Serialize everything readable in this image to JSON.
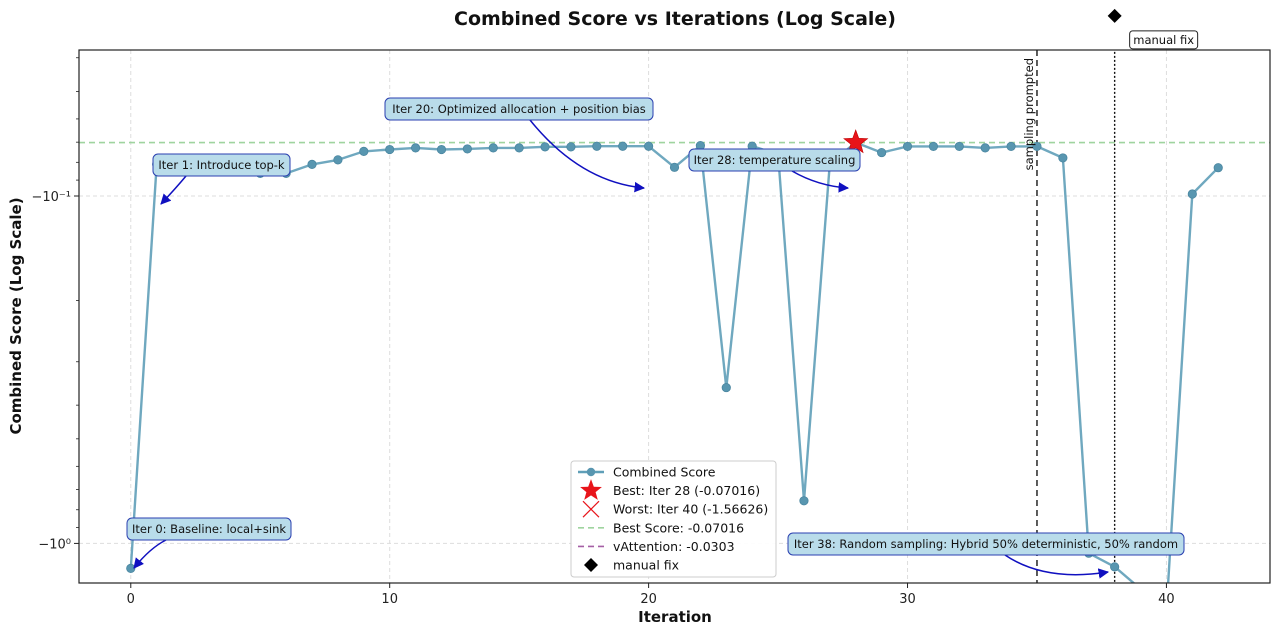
{
  "chart_data": {
    "type": "line",
    "title": "Combined Score vs Iterations (Log Scale)",
    "xlabel": "Iteration",
    "ylabel": "Combined Score (Log Scale)",
    "xlim": [
      -2,
      44
    ],
    "ylim_abs": [
      0.038,
      1.3
    ],
    "y_scale": "symlog-negative",
    "grid": true,
    "x_ticks": [
      0,
      10,
      20,
      30,
      40
    ],
    "y_ticks": [
      {
        "value": 0.1,
        "label": "−10⁻¹"
      },
      {
        "value": 1.0,
        "label": "−10⁰"
      }
    ],
    "series": [
      {
        "name": "Combined Score",
        "color": "#5f9fb8",
        "x": [
          0,
          1,
          2,
          3,
          4,
          5,
          6,
          7,
          8,
          9,
          10,
          11,
          12,
          13,
          14,
          15,
          16,
          17,
          18,
          19,
          20,
          21,
          22,
          23,
          24,
          25,
          26,
          27,
          28,
          29,
          30,
          31,
          32,
          33,
          34,
          35,
          36,
          37,
          38,
          40,
          41,
          42
        ],
        "y": [
          -1.18,
          -0.081,
          -0.0828,
          -0.0813,
          -0.0813,
          -0.0861,
          -0.0861,
          -0.0811,
          -0.0787,
          -0.0744,
          -0.0735,
          -0.0727,
          -0.0735,
          -0.0732,
          -0.0727,
          -0.0727,
          -0.0722,
          -0.0722,
          -0.0719,
          -0.0719,
          -0.0719,
          -0.0827,
          -0.0716,
          -0.356,
          -0.0719,
          -0.0758,
          -0.754,
          -0.0806,
          -0.07016,
          -0.075,
          -0.072,
          -0.072,
          -0.072,
          -0.0727,
          -0.072,
          -0.072,
          -0.0777,
          -1.067,
          -1.168,
          -1.56626,
          -0.0987,
          -0.0829
        ]
      }
    ],
    "best": {
      "iteration": 28,
      "value": -0.07016,
      "label": "Best: Iter 28 (-0.07016)"
    },
    "worst": {
      "iteration": 40,
      "value": -1.56626,
      "label": "Worst: Iter 40 (-1.56626)"
    },
    "reference_lines": [
      {
        "name": "Best Score",
        "value": -0.07016,
        "label": "Best Score: -0.07016",
        "color": "#9fd49f"
      },
      {
        "name": "vAttention",
        "value": -0.0303,
        "label": "vAttention: -0.0303",
        "color": "#a55fa5"
      }
    ],
    "vertical_lines": [
      {
        "x": 35,
        "label": "sampling prompted",
        "style": "dashed"
      },
      {
        "x": 38,
        "label": "",
        "style": "dotted"
      }
    ],
    "manual_fix": {
      "x": 38,
      "value": -0.0303,
      "label": "manual fix",
      "legend_label": "manual fix"
    },
    "annotations": [
      {
        "text": "Iter 0: Baseline: local+sink",
        "target_x": 0,
        "target_y": -1.18
      },
      {
        "text": "Iter 1: Introduce top-k",
        "target_x": 1,
        "target_y": -0.081
      },
      {
        "text": "Iter 20: Optimized allocation +  position bias",
        "target_x": 20,
        "target_y": -0.0719
      },
      {
        "text": "Iter 28: temperature scaling",
        "target_x": 28,
        "target_y": -0.07016
      },
      {
        "text": "Iter 38: Random sampling: Hybrid 50% deterministic, 50% random",
        "target_x": 38,
        "target_y": -1.168
      }
    ],
    "legend": {
      "position": "lower-center",
      "entries": [
        "Combined Score",
        "Best: Iter 28 (-0.07016)",
        "Worst: Iter 40 (-1.56626)",
        "Best Score: -0.07016",
        "vAttention: -0.0303",
        "manual fix"
      ]
    }
  }
}
